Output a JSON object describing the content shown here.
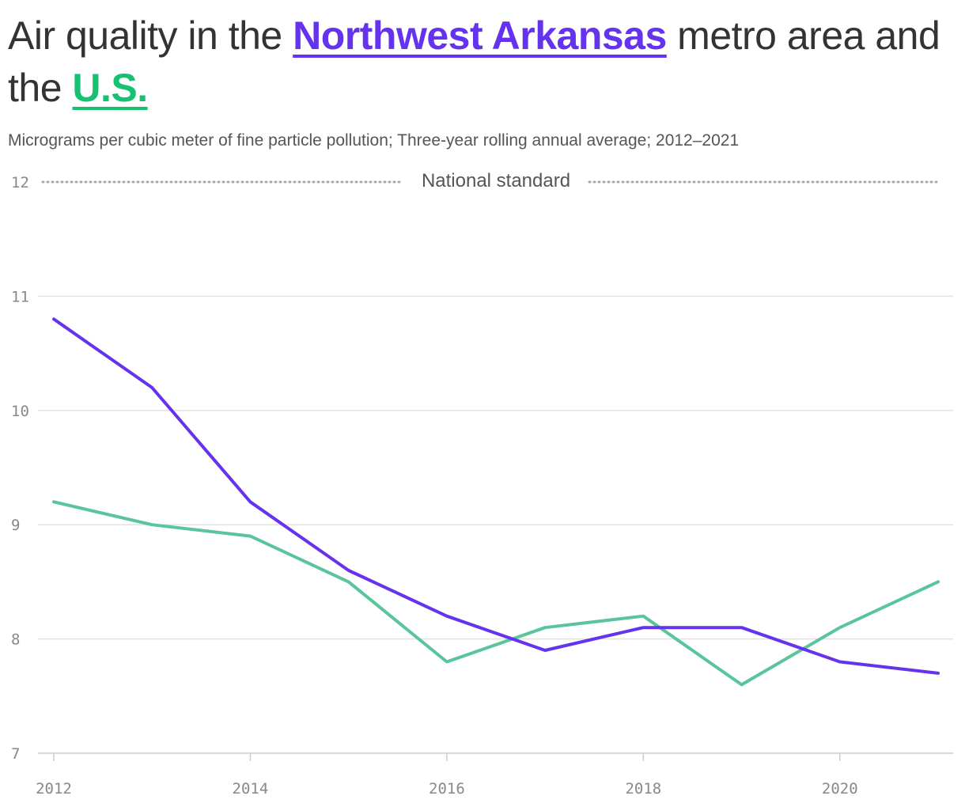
{
  "header": {
    "title_pre": "Air quality in the ",
    "title_nwa": "Northwest Arkansas",
    "title_mid": " metro area and the ",
    "title_us": "U.S.",
    "subtitle": "Micrograms per cubic meter of fine particle pollution; Three-year rolling annual average; 2012–2021"
  },
  "chart_data": {
    "type": "line",
    "title": "Air quality in the Northwest Arkansas metro area and the U.S.",
    "subtitle": "Micrograms per cubic meter of fine particle pollution; Three-year rolling annual average; 2012–2021",
    "x": [
      2012,
      2013,
      2014,
      2015,
      2016,
      2017,
      2018,
      2019,
      2020,
      2021
    ],
    "x_ticks": [
      "2012",
      "2014",
      "2016",
      "2018",
      "2020"
    ],
    "y_ticks": [
      "7",
      "8",
      "9",
      "10",
      "11",
      "12"
    ],
    "ylim": [
      7,
      12
    ],
    "xlim": [
      2012,
      2021
    ],
    "grid": true,
    "series": [
      {
        "name": "Northwest Arkansas",
        "color": "#6533ee",
        "values": [
          10.8,
          10.2,
          9.2,
          8.6,
          8.2,
          7.9,
          8.1,
          8.1,
          7.8,
          7.7
        ]
      },
      {
        "name": "U.S.",
        "color": "#5ac49a",
        "values": [
          9.2,
          9.0,
          8.9,
          8.5,
          7.8,
          8.1,
          8.2,
          7.6,
          8.1,
          8.5
        ]
      }
    ],
    "annotations": [
      {
        "label": "National standard",
        "y": 12
      }
    ]
  }
}
